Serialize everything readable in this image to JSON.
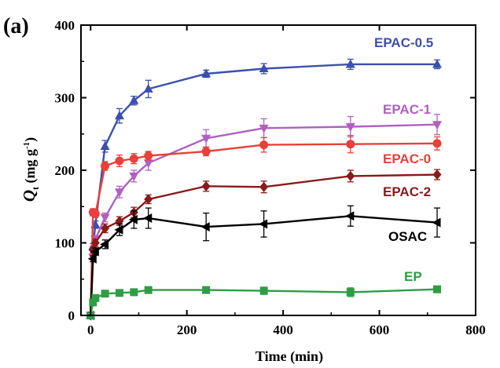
{
  "panel_label": "(a)",
  "chart_data": {
    "type": "line",
    "title": "",
    "xlabel": "Time (min)",
    "ylabel": "Q",
    "ylabel_sub": "t",
    "ylabel_unit_open": " (mg g",
    "ylabel_unit_sup": "-1",
    "ylabel_unit_close": ")",
    "xlim": [
      -20,
      800
    ],
    "ylim": [
      0,
      400
    ],
    "xticks": [
      0,
      200,
      400,
      600,
      800
    ],
    "yticks": [
      0,
      100,
      200,
      300,
      400
    ],
    "grid": false,
    "legend_placement": "inline labels at right",
    "series": [
      {
        "name": "EPAC-0.5",
        "color": "#3b4fb0",
        "marker": "triangle-up",
        "x": [
          0,
          5,
          10,
          30,
          60,
          90,
          120,
          240,
          360,
          540,
          720
        ],
        "y": [
          0,
          95,
          125,
          233,
          275,
          296,
          312,
          333,
          340,
          346,
          346
        ],
        "err": [
          0,
          4,
          5,
          8,
          10,
          6,
          12,
          5,
          7,
          7,
          6
        ]
      },
      {
        "name": "EPAC-1",
        "color": "#b060c0",
        "marker": "triangle-down",
        "x": [
          0,
          5,
          10,
          30,
          60,
          90,
          120,
          240,
          360,
          540,
          720
        ],
        "y": [
          0,
          80,
          105,
          135,
          170,
          192,
          210,
          244,
          258,
          260,
          263
        ],
        "err": [
          0,
          4,
          5,
          6,
          8,
          8,
          10,
          12,
          13,
          14,
          14
        ]
      },
      {
        "name": "EPAC-0",
        "color": "#e8413a",
        "marker": "circle",
        "x": [
          0,
          5,
          10,
          30,
          60,
          90,
          120,
          240,
          360,
          540,
          720
        ],
        "y": [
          0,
          142,
          140,
          206,
          213,
          216,
          220,
          226,
          235,
          236,
          237
        ],
        "err": [
          0,
          5,
          5,
          6,
          8,
          7,
          6,
          6,
          10,
          12,
          9
        ]
      },
      {
        "name": "EPAC-2",
        "color": "#8b1a1a",
        "marker": "diamond",
        "x": [
          0,
          5,
          10,
          30,
          60,
          90,
          120,
          240,
          360,
          540,
          720
        ],
        "y": [
          0,
          90,
          100,
          120,
          130,
          142,
          160,
          178,
          177,
          192,
          194
        ],
        "err": [
          0,
          4,
          5,
          6,
          6,
          7,
          6,
          7,
          8,
          8,
          7
        ]
      },
      {
        "name": "OSAC",
        "color": "#000000",
        "marker": "triangle-left",
        "x": [
          0,
          5,
          10,
          30,
          60,
          90,
          120,
          240,
          360,
          540,
          720
        ],
        "y": [
          0,
          78,
          88,
          98,
          118,
          132,
          134,
          122,
          126,
          137,
          128
        ],
        "err": [
          0,
          4,
          5,
          6,
          8,
          12,
          14,
          19,
          18,
          14,
          20
        ]
      },
      {
        "name": "EP",
        "color": "#2e9e45",
        "marker": "square",
        "x": [
          0,
          5,
          10,
          30,
          60,
          90,
          120,
          240,
          360,
          540,
          720
        ],
        "y": [
          0,
          18,
          24,
          30,
          31,
          32,
          35,
          35,
          34,
          32,
          36
        ],
        "err": [
          0,
          2,
          3,
          3,
          4,
          4,
          3,
          4,
          5,
          6,
          4
        ]
      }
    ]
  }
}
